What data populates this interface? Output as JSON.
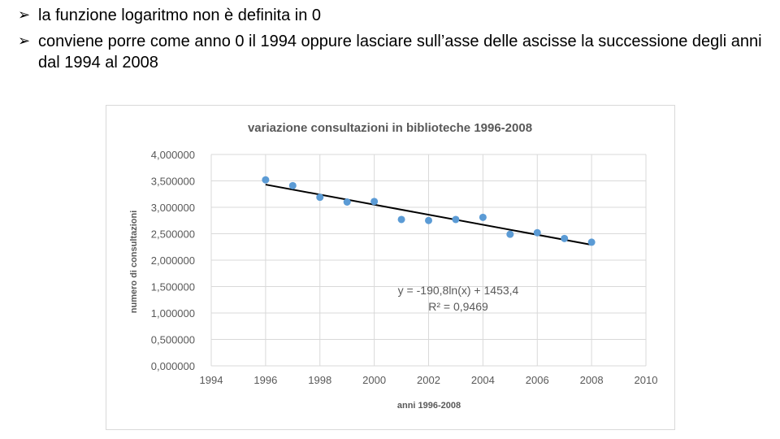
{
  "bullets": [
    {
      "text": "la funzione logaritmo non è definita in 0"
    },
    {
      "text": "conviene porre come anno 0 il 1994 oppure lasciare sull’asse delle ascisse la successione degli anni dal 1994 al 2008"
    }
  ],
  "icons": {
    "bullet": "arrow-bullet-icon"
  },
  "chart_data": {
    "type": "scatter",
    "title": "variazione consultazioni in biblioteche 1996-2008",
    "xlabel": "anni 1996-2008",
    "ylabel": "numero di consultazioni",
    "xlim": [
      1994,
      2010
    ],
    "ylim": [
      0,
      4
    ],
    "x_ticks": [
      "1994",
      "1996",
      "1998",
      "2000",
      "2002",
      "2004",
      "2006",
      "2008",
      "2010"
    ],
    "y_ticks": [
      "0,000000",
      "0,500000",
      "1,000000",
      "1,500000",
      "2,000000",
      "2,500000",
      "3,000000",
      "3,500000",
      "4,000000"
    ],
    "grid": true,
    "legend": "none",
    "series": [
      {
        "x": [
          1996,
          1997,
          1998,
          1999,
          2000,
          2001,
          2002,
          2003,
          2004,
          2005,
          2006,
          2007,
          2008
        ],
        "y": [
          3.52,
          3.41,
          3.19,
          3.1,
          3.11,
          2.77,
          2.75,
          2.77,
          2.81,
          2.49,
          2.52,
          2.41,
          2.34
        ],
        "color": "#5b9bd5"
      }
    ],
    "trendline": {
      "type": "logarithmic",
      "color": "#000000",
      "x_range": [
        1996,
        2008
      ],
      "y_range": [
        3.43,
        2.29
      ],
      "equation": "y = -190,8ln(x) + 1453,4",
      "r2": "R² = 0,9469"
    }
  }
}
